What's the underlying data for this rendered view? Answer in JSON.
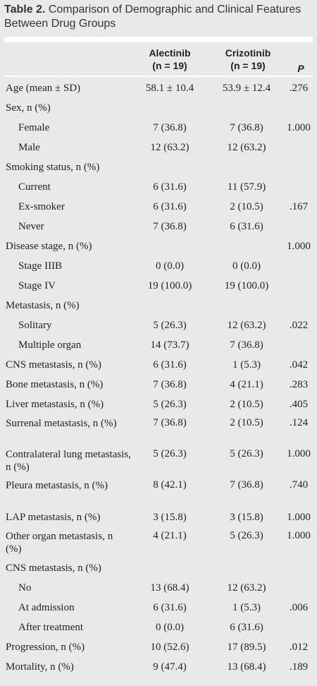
{
  "table": {
    "caption_bold": "Table 2.",
    "caption_text": "Comparison of Demographic and Clinical Features Between Drug Groups",
    "headers": {
      "alectinib": "Alectinib",
      "alectinib_n": "(n = 19)",
      "crizotinib": "Crizotinib",
      "crizotinib_n": "(n = 19)",
      "p": "P"
    },
    "rows": [
      {
        "label": "Age (mean ± SD)",
        "a": "58.1 ± 10.4",
        "c": "53.9 ± 12.4",
        "p": ".276"
      },
      {
        "label": "Sex, n (%)",
        "a": "",
        "c": "",
        "p": ""
      },
      {
        "label": "Female",
        "a": "7 (36.8)",
        "c": "7 (36.8)",
        "p": "1.000"
      },
      {
        "label": "Male",
        "a": "12 (63.2)",
        "c": "12 (63.2)",
        "p": ""
      },
      {
        "label": "Smoking status, n (%)",
        "a": "",
        "c": "",
        "p": ""
      },
      {
        "label": "Current",
        "a": "6 (31.6)",
        "c": "11 (57.9)",
        "p": ""
      },
      {
        "label": "Ex-smoker",
        "a": "6 (31.6)",
        "c": "2 (10.5)",
        "p": ".167"
      },
      {
        "label": "Never",
        "a": "7 (36.8)",
        "c": "6 (31.6)",
        "p": ""
      },
      {
        "label": "Disease stage, n (%)",
        "a": "",
        "c": "",
        "p": "1.000"
      },
      {
        "label": "Stage IIIB",
        "a": "0 (0.0)",
        "c": "0 (0.0)",
        "p": ""
      },
      {
        "label": "Stage IV",
        "a": "19 (100.0)",
        "c": "19 (100.0)",
        "p": ""
      },
      {
        "label": "Metastasis, n (%)",
        "a": "",
        "c": "",
        "p": ""
      },
      {
        "label": "Solitary",
        "a": "5 (26.3)",
        "c": "12 (63.2)",
        "p": ".022"
      },
      {
        "label": "Multiple organ",
        "a": "14 (73.7)",
        "c": "7 (36.8)",
        "p": ""
      },
      {
        "label": "CNS metastasis, n (%)",
        "a": "6 (31.6)",
        "c": "1 (5.3)",
        "p": ".042"
      },
      {
        "label": "Bone metastasis, n (%)",
        "a": "7 (36.8)",
        "c": "4 (21.1)",
        "p": ".283"
      },
      {
        "label": "Liver metastasis, n (%)",
        "a": "5 (26.3)",
        "c": "2 (10.5)",
        "p": ".405"
      },
      {
        "label": "Surrenal metastasis, n (%)",
        "a": "7 (36.8)",
        "c": "2 (10.5)",
        "p": ".124"
      },
      {
        "label": "Contralateral lung metastasis, n (%)",
        "a": "5 (26.3)",
        "c": "5 (26.3)",
        "p": "1.000"
      },
      {
        "label": "Pleura metastasis, n (%)",
        "a": "8 (42.1)",
        "c": "7 (36.8)",
        "p": ".740"
      },
      {
        "label": "LAP metastasis, n (%)",
        "a": "3 (15.8)",
        "c": "3 (15.8)",
        "p": "1.000"
      },
      {
        "label": "Other organ metastasis, n (%)",
        "a": "4 (21.1)",
        "c": "5 (26.3)",
        "p": "1.000"
      },
      {
        "label": "CNS metastasis, n (%)",
        "a": "",
        "c": "",
        "p": ""
      },
      {
        "label": "No",
        "a": "13 (68.4)",
        "c": "12 (63.2)",
        "p": ""
      },
      {
        "label": "At admission",
        "a": "6 (31.6)",
        "c": "1 (5.3)",
        "p": ".006"
      },
      {
        "label": "After treatment",
        "a": "0 (0.0)",
        "c": "6 (31.6)",
        "p": ""
      },
      {
        "label": "Progression, n (%)",
        "a": "10 (52.6)",
        "c": "17 (89.5)",
        "p": ".012"
      },
      {
        "label": "Mortality, n (%)",
        "a": "9 (47.4)",
        "c": "13 (68.4)",
        "p": ".189"
      }
    ]
  }
}
